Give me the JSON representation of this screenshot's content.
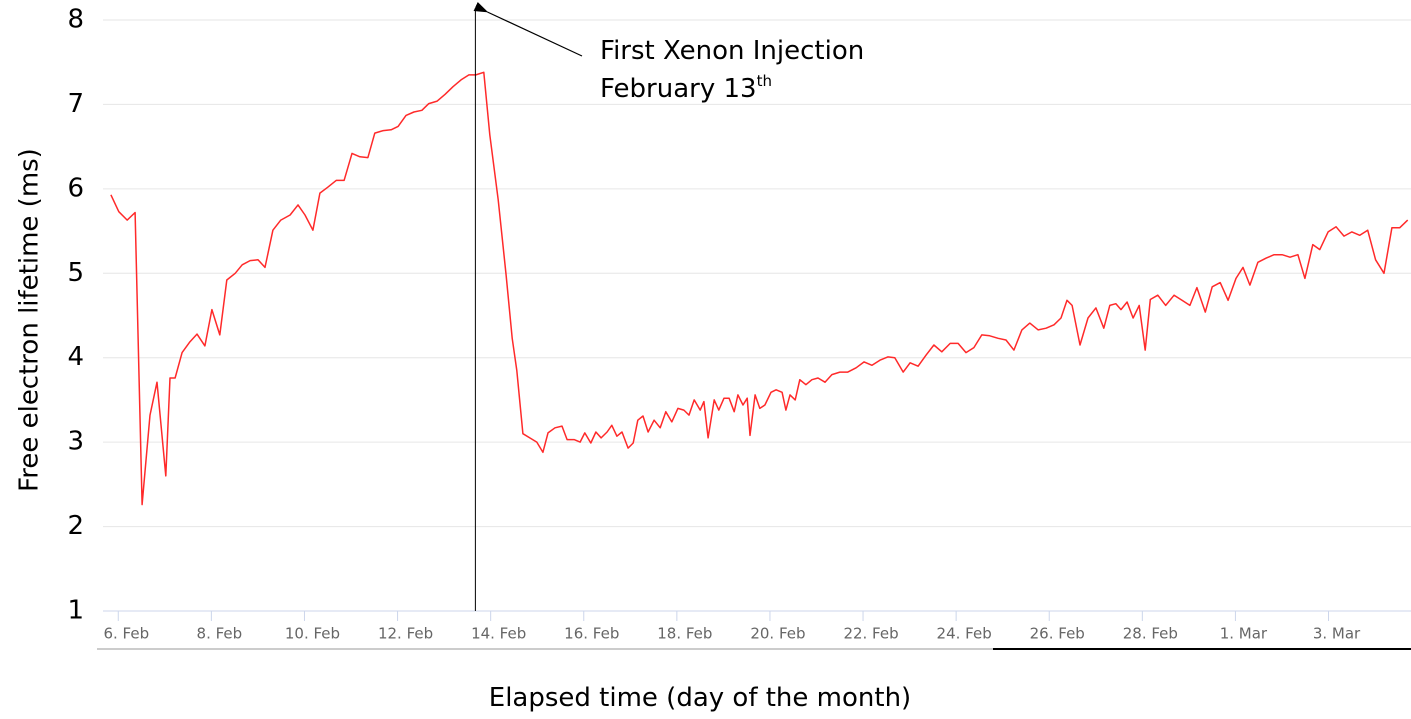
{
  "chart_data": {
    "type": "line",
    "xlabel": "Elapsed time (day of the month)",
    "ylabel": "Free electron lifetime (ms)",
    "annotation": {
      "x": 13.5,
      "lines": [
        "First Xenon Injection",
        "February 13"
      ],
      "superscript": "th"
    },
    "xlim": [
      5.5,
      33.6
    ],
    "ylim": [
      1,
      8
    ],
    "xticks": [
      {
        "value": 6,
        "label": "6. Feb"
      },
      {
        "value": 8,
        "label": "8. Feb"
      },
      {
        "value": 10,
        "label": "10. Feb"
      },
      {
        "value": 12,
        "label": "12. Feb"
      },
      {
        "value": 14,
        "label": "14. Feb"
      },
      {
        "value": 16,
        "label": "16. Feb"
      },
      {
        "value": 18,
        "label": "18. Feb"
      },
      {
        "value": 20,
        "label": "20. Feb"
      },
      {
        "value": 22,
        "label": "22. Feb"
      },
      {
        "value": 24,
        "label": "24. Feb"
      },
      {
        "value": 26,
        "label": "26. Feb"
      },
      {
        "value": 28,
        "label": "28. Feb"
      },
      {
        "value": 30,
        "label": "1. Mar"
      },
      {
        "value": 32,
        "label": "3. Mar"
      }
    ],
    "yticks": [
      1,
      2,
      3,
      4,
      5,
      6,
      7,
      8
    ],
    "grid": true,
    "series": [
      {
        "color": "#ff2a2a",
        "x": [
          5.67,
          5.84,
          6.02,
          6.19,
          6.34,
          6.51,
          6.66,
          6.85,
          6.94,
          7.05,
          7.2,
          7.37,
          7.52,
          7.69,
          7.84,
          8.01,
          8.16,
          8.34,
          8.49,
          8.66,
          8.83,
          8.98,
          9.15,
          9.32,
          9.52,
          9.69,
          9.84,
          10.01,
          10.16,
          10.33,
          10.51,
          10.68,
          10.85,
          11.02,
          11.19,
          11.34,
          11.52,
          11.69,
          11.84,
          12.01,
          12.18,
          12.35,
          12.5,
          12.68,
          12.85,
          13.02,
          13.19,
          13.36,
          13.51,
          13.68,
          13.81,
          13.99,
          14.16,
          14.29,
          14.39,
          14.52,
          14.67,
          14.82,
          14.95,
          15.06,
          15.21,
          15.36,
          15.47,
          15.62,
          15.75,
          15.85,
          15.98,
          16.09,
          16.2,
          16.33,
          16.43,
          16.54,
          16.65,
          16.78,
          16.89,
          16.99,
          17.1,
          17.21,
          17.34,
          17.47,
          17.59,
          17.72,
          17.85,
          17.98,
          18.09,
          18.2,
          18.33,
          18.41,
          18.5,
          18.63,
          18.73,
          18.84,
          18.95,
          19.06,
          19.14,
          19.25,
          19.34,
          19.4,
          19.51,
          19.61,
          19.72,
          19.85,
          19.96,
          20.09,
          20.17,
          20.26,
          20.37,
          20.47,
          20.6,
          20.73,
          20.86,
          21.01,
          21.16,
          21.33,
          21.5,
          21.68,
          21.85,
          22.02,
          22.19,
          22.36,
          22.51,
          22.69,
          22.84,
          23.01,
          23.18,
          23.35,
          23.52,
          23.7,
          23.87,
          24.04,
          24.21,
          24.38,
          24.55,
          24.73,
          24.9,
          25.07,
          25.24,
          25.41,
          25.59,
          25.76,
          25.93,
          26.08,
          26.21,
          26.32,
          26.49,
          26.66,
          26.83,
          27.0,
          27.13,
          27.26,
          27.37,
          27.5,
          27.63,
          27.76,
          27.89,
          28.0,
          28.16,
          28.33,
          28.51,
          28.68,
          28.85,
          29.0,
          29.18,
          29.33,
          29.5,
          29.67,
          29.84,
          29.99,
          30.14,
          30.31,
          30.49,
          30.66,
          30.83,
          31.0,
          31.17,
          31.32,
          31.49,
          31.64,
          31.82,
          31.99,
          32.16,
          32.33,
          32.5,
          32.67,
          32.84,
          33.02,
          33.19,
          33.36,
          33.53
        ],
        "values": [
          5.93,
          5.73,
          5.63,
          5.72,
          2.26,
          3.32,
          3.71,
          2.6,
          3.76,
          3.76,
          4.06,
          4.19,
          4.28,
          4.14,
          4.57,
          4.27,
          4.92,
          5.0,
          5.1,
          5.15,
          5.16,
          5.07,
          5.51,
          5.63,
          5.69,
          5.81,
          5.69,
          5.51,
          5.95,
          6.02,
          6.1,
          6.1,
          6.42,
          6.38,
          6.37,
          6.66,
          6.69,
          6.7,
          6.74,
          6.87,
          6.91,
          6.93,
          7.01,
          7.04,
          7.12,
          7.21,
          7.29,
          7.35,
          7.35,
          7.38,
          6.64,
          5.87,
          4.98,
          4.23,
          3.85,
          3.1,
          3.05,
          3.0,
          2.88,
          3.11,
          3.17,
          3.19,
          3.03,
          3.03,
          3.0,
          3.11,
          2.99,
          3.12,
          3.05,
          3.12,
          3.2,
          3.07,
          3.12,
          2.93,
          2.99,
          3.26,
          3.31,
          3.12,
          3.26,
          3.17,
          3.36,
          3.24,
          3.4,
          3.38,
          3.32,
          3.5,
          3.38,
          3.48,
          3.05,
          3.5,
          3.38,
          3.52,
          3.52,
          3.36,
          3.56,
          3.44,
          3.52,
          3.08,
          3.56,
          3.4,
          3.44,
          3.59,
          3.62,
          3.59,
          3.38,
          3.56,
          3.5,
          3.74,
          3.68,
          3.74,
          3.76,
          3.71,
          3.8,
          3.83,
          3.83,
          3.88,
          3.95,
          3.91,
          3.97,
          4.01,
          4.0,
          3.83,
          3.94,
          3.9,
          4.03,
          4.15,
          4.07,
          4.17,
          4.17,
          4.06,
          4.12,
          4.27,
          4.26,
          4.23,
          4.21,
          4.09,
          4.33,
          4.41,
          4.33,
          4.35,
          4.39,
          4.47,
          4.68,
          4.62,
          4.15,
          4.47,
          4.59,
          4.35,
          4.62,
          4.64,
          4.57,
          4.66,
          4.47,
          4.62,
          4.09,
          4.69,
          4.74,
          4.62,
          4.74,
          4.68,
          4.62,
          4.83,
          4.54,
          4.84,
          4.89,
          4.68,
          4.94,
          5.07,
          4.86,
          5.13,
          5.18,
          5.22,
          5.22,
          5.19,
          5.22,
          4.94,
          5.34,
          5.28,
          5.49,
          5.55,
          5.44,
          5.49,
          5.45,
          5.51,
          5.16,
          5.0,
          5.54,
          5.54,
          5.63
        ]
      }
    ]
  }
}
